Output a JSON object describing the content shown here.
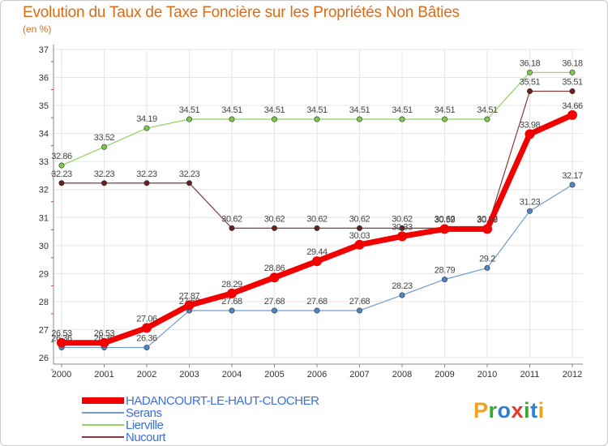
{
  "title": "Evolution du Taux de Taxe Foncière sur les Propriétés Non Bâties",
  "subtitle": "(en %)",
  "logo": {
    "text": "Proxiti",
    "letter_colors": [
      "#f0a21a",
      "#39a935",
      "#2f7fd6",
      "#e53935",
      "#39a935",
      "#2f7fd6",
      "#f0a21a"
    ]
  },
  "chart_data": {
    "type": "line",
    "title": "Evolution du Taux de Taxe Foncière sur les Propriétés Non Bâties",
    "ylabel": "(en %)",
    "xlabel": "",
    "ylim": [
      26,
      37
    ],
    "yticks": [
      "26",
      "27",
      "28",
      "29",
      "30",
      "31",
      "32",
      "33",
      "34",
      "35",
      "36",
      "37"
    ],
    "categories": [
      "2000",
      "2001",
      "2002",
      "2003",
      "2004",
      "2005",
      "2006",
      "2007",
      "2008",
      "2009",
      "2010",
      "2011",
      "2012"
    ],
    "series": [
      {
        "name": "Serans",
        "color": "#6f9ccc",
        "marker": "#4a86c8",
        "width": 1.2,
        "values": [
          26.36,
          26.36,
          26.36,
          27.68,
          27.68,
          27.68,
          27.68,
          27.68,
          28.23,
          28.79,
          29.2,
          31.23,
          32.17
        ],
        "labels": [
          "26.36",
          "26.36",
          "26.36",
          "27.68",
          "27.68",
          "27.68",
          "27.68",
          "27.68",
          "28.23",
          "28.79",
          "29.2",
          "31.23",
          "32.17"
        ]
      },
      {
        "name": "Lierville",
        "color": "#8fd460",
        "marker": "#7cc84a",
        "width": 1.2,
        "values": [
          32.86,
          33.52,
          34.19,
          34.51,
          34.51,
          34.51,
          34.51,
          34.51,
          34.51,
          34.51,
          34.51,
          36.18,
          36.18
        ],
        "labels": [
          "32.86",
          "33.52",
          "34.19",
          "34.51",
          "34.51",
          "34.51",
          "34.51",
          "34.51",
          "34.51",
          "34.51",
          "34.51",
          "36.18",
          "36.18"
        ]
      },
      {
        "name": "Nucourt",
        "color": "#7e3b3b",
        "marker": "#6a1f1f",
        "width": 1.2,
        "values": [
          32.23,
          32.23,
          32.23,
          32.23,
          30.62,
          30.62,
          30.62,
          30.62,
          30.62,
          30.62,
          30.62,
          35.51,
          35.51
        ],
        "labels": [
          "32.23",
          "32.23",
          "32.23",
          "32.23",
          "30.62",
          "30.62",
          "30.62",
          "30.62",
          "30.62",
          "30.62",
          "30.62",
          "35.51",
          "35.51"
        ]
      },
      {
        "name": "HADANCOURT-LE-HAUT-CLOCHER",
        "color": "#f20000",
        "marker": "#f20000",
        "width": 7,
        "values": [
          26.53,
          26.53,
          27.06,
          27.87,
          28.29,
          28.86,
          29.44,
          30.03,
          30.33,
          30.59,
          30.59,
          33.98,
          34.66
        ],
        "labels": [
          "26.53",
          "26.53",
          "27.06",
          "27.87",
          "28.29",
          "28.86",
          "29.44",
          "30.03",
          "30.33",
          "30.59",
          "30.59",
          "33.98",
          "34.66"
        ]
      }
    ],
    "legend": {
      "placement": "bottom-left",
      "order": [
        "HADANCOURT-LE-HAUT-CLOCHER",
        "Serans",
        "Lierville",
        "Nucourt"
      ]
    }
  }
}
